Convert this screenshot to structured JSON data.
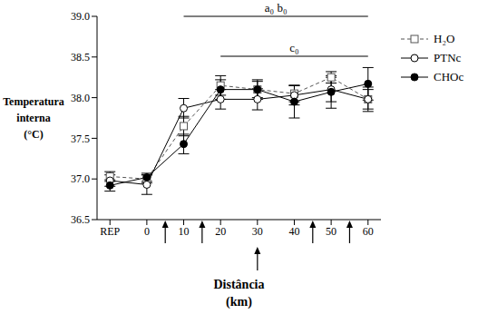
{
  "chart_data": {
    "type": "line",
    "x_label": "Distância (km)",
    "y_label": "Temperatura interna (°C)",
    "categories": [
      "REP",
      "0",
      "10",
      "20",
      "30",
      "40",
      "50",
      "60"
    ],
    "ylim": [
      36.5,
      39.0
    ],
    "yticks": [
      36.5,
      {
        "value": 37,
        "label": "37.0"
      },
      37.5,
      {
        "value": 38,
        "label": "38.0"
      },
      38.5,
      {
        "value": 39,
        "label": "39.0"
      }
    ],
    "grid": false,
    "legend": "upper right",
    "series": [
      {
        "name": "H₂O",
        "color": "#555555",
        "marker": "open-square",
        "line_style": "dashed",
        "values": [
          37.03,
          37.0,
          37.65,
          38.15,
          38.1,
          38.05,
          38.25,
          37.98
        ],
        "errors": [
          0.06,
          0.05,
          0.12,
          0.12,
          0.1,
          0.1,
          0.07,
          0.12
        ]
      },
      {
        "name": "PTNc",
        "color": "#000000",
        "marker": "open-circle",
        "line_style": "solid",
        "values": [
          36.98,
          36.93,
          37.87,
          37.98,
          37.98,
          38.03,
          38.1,
          37.98
        ],
        "errors": [
          0.07,
          0.12,
          0.12,
          0.12,
          0.13,
          0.12,
          0.15,
          0.15
        ]
      },
      {
        "name": "CHOc",
        "color": "#000000",
        "marker": "circle",
        "line_style": "solid",
        "values": [
          36.92,
          37.02,
          37.43,
          38.1,
          38.1,
          37.95,
          38.07,
          38.17
        ],
        "errors": [
          0.07,
          0.05,
          0.12,
          0.12,
          0.12,
          0.2,
          0.2,
          0.2
        ]
      }
    ],
    "significance": [
      {
        "label": "a₀ b₀",
        "from": "10",
        "to": "60"
      },
      {
        "label": "c₀",
        "from": "20",
        "to": "60"
      }
    ],
    "arrows": [
      5,
      15,
      30,
      45,
      55
    ]
  }
}
